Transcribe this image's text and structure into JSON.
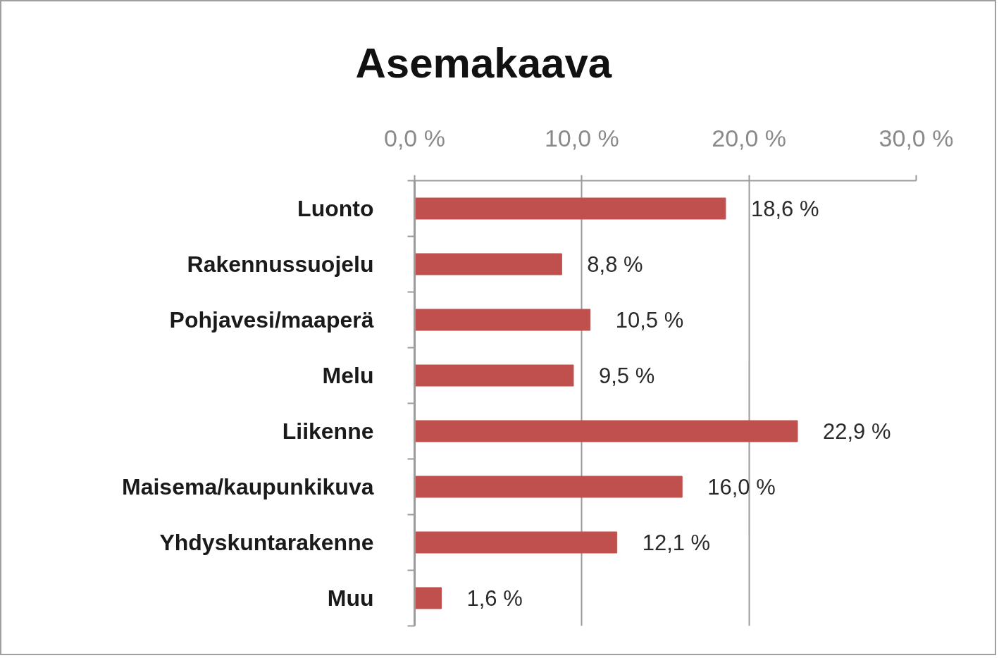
{
  "chart_data": {
    "type": "bar",
    "orientation": "horizontal",
    "title": "Asemakaava",
    "categories": [
      "Luonto",
      "Rakennussuojelu",
      "Pohjavesi/maaperä",
      "Melu",
      "Liikenne",
      "Maisema/kaupunkikuva",
      "Yhdyskuntarakenne",
      "Muu"
    ],
    "values": [
      18.6,
      8.8,
      10.5,
      9.5,
      22.9,
      16.0,
      12.1,
      1.6
    ],
    "value_labels": [
      "18,6 %",
      "8,8 %",
      "10,5 %",
      "9,5 %",
      "22,9 %",
      "16,0 %",
      "12,1 %",
      "1,6 %"
    ],
    "color": "#c0504d",
    "xlim": [
      0,
      30
    ],
    "xticks": [
      {
        "value": 0,
        "label": "0,0 %"
      },
      {
        "value": 10,
        "label": "10,0 %"
      },
      {
        "value": 20,
        "label": "20,0 %"
      },
      {
        "value": 30,
        "label": "30,0 %"
      }
    ],
    "grid": "x"
  }
}
